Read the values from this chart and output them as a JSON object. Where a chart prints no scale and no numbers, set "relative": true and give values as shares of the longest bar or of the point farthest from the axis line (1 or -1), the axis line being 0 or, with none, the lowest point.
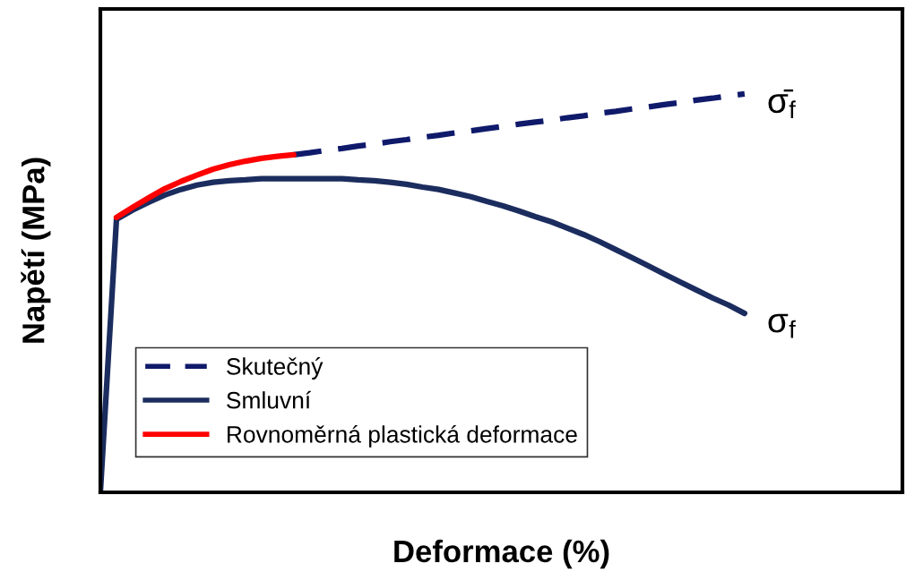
{
  "chart_data": {
    "type": "line",
    "relative": true,
    "xlabel": "Deformace (%)",
    "ylabel": "Napětí (MPa)",
    "categories": [
      null,
      null,
      null,
      null,
      null,
      null,
      null,
      null,
      null,
      null,
      null,
      null,
      null,
      null,
      null,
      null,
      null,
      null,
      null,
      null,
      null,
      null,
      null,
      null,
      null,
      null,
      null,
      null,
      null,
      null,
      null,
      null,
      null,
      null,
      null,
      null,
      null,
      null,
      null,
      null,
      null
    ],
    "series": [
      {
        "name": "Skutečný",
        "color": "#0f1a6b",
        "line_style": "dashed",
        "values": [
          null,
          null,
          null,
          null,
          null,
          null,
          null,
          null,
          null,
          null,
          null,
          null,
          0.847,
          0.852,
          0.858,
          0.863,
          0.869,
          0.874,
          0.88,
          0.885,
          0.891,
          0.896,
          0.902,
          0.907,
          0.913,
          0.918,
          0.924,
          0.929,
          0.934,
          0.94,
          0.945,
          0.951,
          0.956,
          0.962,
          0.967,
          0.973,
          0.978,
          0.984,
          0.989,
          0.995,
          1.0
        ]
      },
      {
        "name": "Smluvní",
        "color": "#1b2c5e",
        "line_style": "solid",
        "values": [
          0,
          0.685,
          0.708,
          0.728,
          0.746,
          0.76,
          0.771,
          0.778,
          0.782,
          0.784,
          0.787,
          0.787,
          0.787,
          0.787,
          0.787,
          0.787,
          0.784,
          0.782,
          0.778,
          0.773,
          0.766,
          0.76,
          0.751,
          0.742,
          0.73,
          0.719,
          0.706,
          0.692,
          0.679,
          0.663,
          0.647,
          0.629,
          0.609,
          0.589,
          0.569,
          0.548,
          0.528,
          0.508,
          0.488,
          0.47,
          0.449
        ]
      },
      {
        "name": "Rovnoměrná plastická deformace",
        "color": "#ff0000",
        "line_style": "solid",
        "values": [
          null,
          0.69,
          0.715,
          0.739,
          0.762,
          0.78,
          0.796,
          0.811,
          0.822,
          0.831,
          0.838,
          0.843,
          0.847,
          null,
          null,
          null,
          null,
          null,
          null,
          null,
          null,
          null,
          null,
          null,
          null,
          null,
          null,
          null,
          null,
          null,
          null,
          null,
          null,
          null,
          null,
          null,
          null,
          null,
          null,
          null,
          null
        ]
      }
    ],
    "annotations": [
      "σ̄$_{f}$",
      "σ$_{f}$"
    ],
    "legend": "bottom left",
    "marker": "none"
  }
}
